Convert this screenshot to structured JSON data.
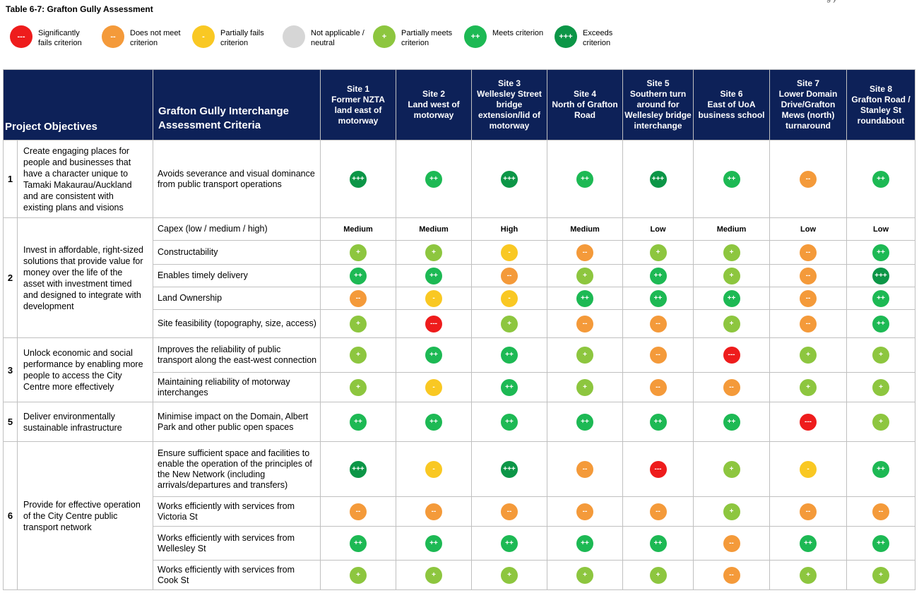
{
  "caption": "Table 6-7: Grafton Gully Assessment",
  "corner_fragment": "g y",
  "legend": [
    {
      "symbol": "---",
      "label": "Significantly\nfails criterion",
      "color": "#ee1c1c"
    },
    {
      "symbol": "--",
      "label": "Does not meet\ncriterion",
      "color": "#f49a3a"
    },
    {
      "symbol": "-",
      "label": "Partially fails\ncriterion",
      "color": "#f9c823"
    },
    {
      "symbol": "",
      "label": "Not applicable /\nneutral",
      "color": "#d6d6d6"
    },
    {
      "symbol": "+",
      "label": "Partially meets\ncriterion",
      "color": "#8dc63f"
    },
    {
      "symbol": "++",
      "label": "Meets criterion",
      "color": "#1db954"
    },
    {
      "symbol": "+++",
      "label": "Exceeds\ncriterion",
      "color": "#0c9647"
    }
  ],
  "header": {
    "objectives": "Project Objectives",
    "criteria": "Grafton Gully Interchange Assessment Criteria",
    "sites": [
      "Site 1\nFormer NZTA land east of motorway",
      "Site 2\nLand west of motorway",
      "Site 3\nWellesley Street bridge extension/lid of motorway",
      "Site 4\nNorth of Grafton Road",
      "Site 5\nSouthern turn around for Wellesley bridge interchange",
      "Site 6\nEast of UoA business school",
      "Site 7\nLower Domain Drive/Grafton Mews (north) turnaround",
      "Site 8\nGrafton Road / Stanley St roundabout"
    ]
  },
  "objectives": [
    {
      "num": "1",
      "text": "Create engaging places for people and businesses that have a character unique to Tamaki Makaurau/Auckland and are consistent with existing plans and visions",
      "rows": [
        {
          "criterion": "Avoids severance and visual dominance from public transport operations",
          "ratings": [
            "+++",
            "++",
            "+++",
            "++",
            "+++",
            "++",
            "--",
            "++"
          ]
        }
      ]
    },
    {
      "num": "2",
      "text": "Invest in affordable, right-sized solutions that provide value for money over the life of the asset with investment timed and designed to integrate with development",
      "rows": [
        {
          "criterion": "Capex (low / medium / high)",
          "cost": true,
          "ratings": [
            "Medium",
            "Medium",
            "High",
            "Medium",
            "Low",
            "Medium",
            "Low",
            "Low"
          ]
        },
        {
          "criterion": "Constructability",
          "ratings": [
            "+",
            "+",
            "-",
            "--",
            "+",
            "+",
            "--",
            "++"
          ]
        },
        {
          "criterion": "Enables timely delivery",
          "ratings": [
            "++",
            "++",
            "--",
            "+",
            "++",
            "+",
            "--",
            "+++"
          ]
        },
        {
          "criterion": "Land Ownership",
          "ratings": [
            "--",
            "-",
            "-",
            "++",
            "++",
            "++",
            "--",
            "++"
          ]
        },
        {
          "criterion": "Site feasibility (topography, size, access)",
          "ratings": [
            "+",
            "---",
            "+",
            "--",
            "--",
            "+",
            "--",
            "++"
          ]
        }
      ]
    },
    {
      "num": "3",
      "text": "Unlock economic and social performance by enabling more people to access the City Centre more effectively",
      "rows": [
        {
          "criterion": "Improves the reliability of public transport along the east-west connection",
          "ratings": [
            "+",
            "++",
            "++",
            "+",
            "--",
            "---",
            "+",
            "+"
          ]
        },
        {
          "criterion": "Maintaining reliability of motorway interchanges",
          "ratings": [
            "+",
            "-",
            "++",
            "+",
            "--",
            "--",
            "+",
            "+"
          ]
        }
      ]
    },
    {
      "num": "5",
      "text": "Deliver environmentally sustainable infrastructure",
      "rows": [
        {
          "criterion": "Minimise impact on the Domain, Albert Park and other public open spaces",
          "ratings": [
            "++",
            "++",
            "++",
            "++",
            "++",
            "++",
            "---",
            "+"
          ]
        }
      ]
    },
    {
      "num": "6",
      "text": "Provide for effective operation of the City Centre public transport network",
      "rows": [
        {
          "criterion": "Ensure sufficient space and facilities to enable the operation of the principles of the New Network (including arrivals/departures and transfers)",
          "ratings": [
            "+++",
            "-",
            "+++",
            "--",
            "---",
            "+",
            "-",
            "++"
          ]
        },
        {
          "criterion": "Works efficiently with services from Victoria St",
          "ratings": [
            "--",
            "--",
            "--",
            "--",
            "--",
            "+",
            "--",
            "--"
          ]
        },
        {
          "criterion": "Works efficiently with services from Wellesley St",
          "ratings": [
            "++",
            "++",
            "++",
            "++",
            "++",
            "--",
            "++",
            "++"
          ]
        },
        {
          "criterion": "Works efficiently with services from Cook St",
          "ratings": [
            "+",
            "+",
            "+",
            "+",
            "+",
            "--",
            "+",
            "+"
          ]
        }
      ]
    }
  ]
}
